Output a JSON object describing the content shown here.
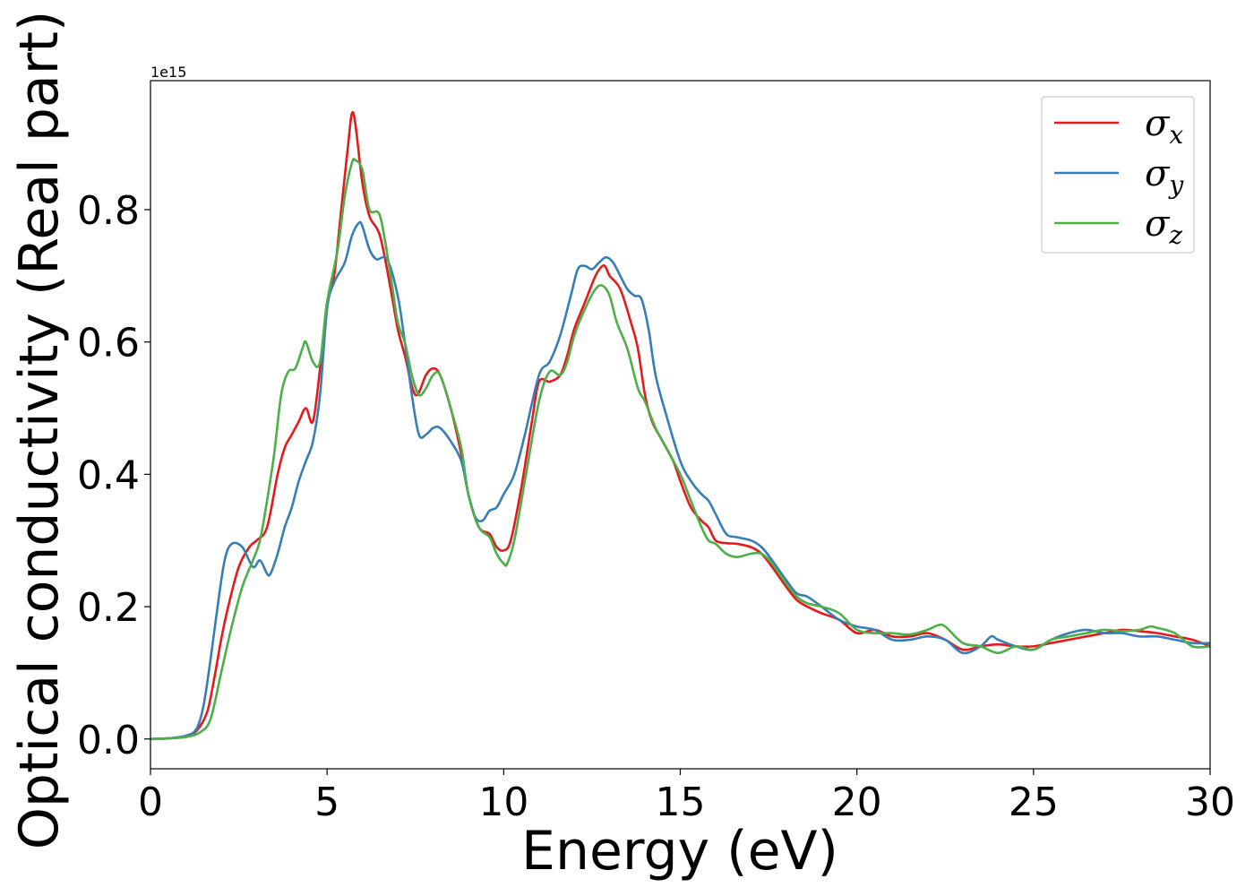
{
  "chart_data": {
    "type": "line",
    "title": "",
    "xlabel": "Energy (eV)",
    "ylabel": "Optical conductivity (Real part)",
    "y_offset_label": "1e15",
    "xlim": [
      0,
      30
    ],
    "ylim": [
      -0.045,
      0.995
    ],
    "xticks": [
      0,
      5,
      10,
      15,
      20,
      25,
      30
    ],
    "xtick_labels": [
      "0",
      "5",
      "10",
      "15",
      "20",
      "25",
      "30"
    ],
    "yticks": [
      0.0,
      0.2,
      0.4,
      0.6,
      0.8
    ],
    "ytick_labels": [
      "0.0",
      "0.2",
      "0.4",
      "0.6",
      "0.8"
    ],
    "grid": false,
    "legend_position": "top-right",
    "series": [
      {
        "name": "σx",
        "symbol": "σ",
        "subscript": "x",
        "color": "#e41a1c",
        "x": [
          0,
          0.5,
          1,
          1.3,
          1.6,
          1.8,
          2,
          2.2,
          2.5,
          2.8,
          3,
          3.3,
          3.6,
          3.8,
          4,
          4.2,
          4.4,
          4.6,
          4.8,
          5,
          5.2,
          5.4,
          5.6,
          5.7,
          5.8,
          6,
          6.2,
          6.5,
          6.8,
          7,
          7.2,
          7.5,
          7.8,
          8,
          8.2,
          8.5,
          8.8,
          9,
          9.3,
          9.6,
          9.8,
          10,
          10.2,
          10.5,
          10.8,
          11,
          11.3,
          11.6,
          11.8,
          12,
          12.3,
          12.6,
          12.8,
          12.9,
          13,
          13.3,
          13.6,
          13.8,
          14,
          14.2,
          14.5,
          14.8,
          15,
          15.3,
          15.6,
          15.8,
          16,
          16.3,
          16.6,
          17,
          17.3,
          17.6,
          18,
          18.3,
          18.6,
          19,
          19.5,
          20,
          20.5,
          21,
          21.5,
          22,
          22.5,
          23,
          23.5,
          24,
          24.5,
          25,
          25.5,
          26,
          26.5,
          27,
          27.5,
          28,
          28.5,
          29,
          29.5,
          30
        ],
        "values": [
          0.0,
          0.001,
          0.004,
          0.012,
          0.04,
          0.09,
          0.15,
          0.2,
          0.26,
          0.29,
          0.3,
          0.32,
          0.4,
          0.44,
          0.46,
          0.48,
          0.5,
          0.48,
          0.56,
          0.66,
          0.7,
          0.8,
          0.9,
          0.945,
          0.93,
          0.84,
          0.79,
          0.76,
          0.68,
          0.62,
          0.58,
          0.52,
          0.55,
          0.56,
          0.55,
          0.5,
          0.43,
          0.37,
          0.32,
          0.31,
          0.29,
          0.285,
          0.3,
          0.38,
          0.48,
          0.54,
          0.54,
          0.55,
          0.58,
          0.62,
          0.66,
          0.7,
          0.715,
          0.712,
          0.7,
          0.68,
          0.63,
          0.59,
          0.52,
          0.48,
          0.45,
          0.42,
          0.39,
          0.35,
          0.33,
          0.32,
          0.3,
          0.296,
          0.295,
          0.29,
          0.28,
          0.26,
          0.23,
          0.21,
          0.2,
          0.19,
          0.18,
          0.16,
          0.165,
          0.155,
          0.155,
          0.16,
          0.15,
          0.135,
          0.14,
          0.143,
          0.14,
          0.14,
          0.145,
          0.15,
          0.155,
          0.16,
          0.165,
          0.163,
          0.16,
          0.155,
          0.15,
          0.14
        ]
      },
      {
        "name": "σy",
        "symbol": "σ",
        "subscript": "y",
        "color": "#377eb8",
        "x": [
          0,
          0.5,
          1,
          1.3,
          1.5,
          1.7,
          1.9,
          2.1,
          2.3,
          2.6,
          2.9,
          3.1,
          3.3,
          3.4,
          3.6,
          3.8,
          4,
          4.2,
          4.4,
          4.6,
          4.8,
          5,
          5.2,
          5.5,
          5.7,
          5.9,
          6,
          6.2,
          6.4,
          6.7,
          7,
          7.2,
          7.4,
          7.6,
          7.8,
          8,
          8.2,
          8.5,
          8.8,
          9,
          9.2,
          9.4,
          9.6,
          9.8,
          10,
          10.3,
          10.6,
          11,
          11.3,
          11.6,
          11.9,
          12.1,
          12.3,
          12.5,
          12.7,
          12.9,
          13.1,
          13.3,
          13.5,
          13.7,
          13.9,
          14.1,
          14.3,
          14.6,
          15,
          15.3,
          15.6,
          15.8,
          16,
          16.3,
          16.6,
          17,
          17.3,
          17.6,
          18,
          18.3,
          18.6,
          19,
          19.5,
          20,
          20.5,
          21,
          21.5,
          22,
          22.5,
          23,
          23.5,
          23.8,
          24,
          24.5,
          25,
          25.5,
          26,
          26.5,
          27,
          27.5,
          28,
          28.5,
          29,
          29.5,
          30
        ],
        "values": [
          0.0,
          0.001,
          0.005,
          0.015,
          0.05,
          0.12,
          0.2,
          0.27,
          0.295,
          0.29,
          0.26,
          0.27,
          0.25,
          0.25,
          0.28,
          0.32,
          0.35,
          0.39,
          0.42,
          0.45,
          0.52,
          0.65,
          0.69,
          0.72,
          0.76,
          0.78,
          0.775,
          0.74,
          0.725,
          0.725,
          0.67,
          0.6,
          0.52,
          0.46,
          0.46,
          0.47,
          0.47,
          0.45,
          0.42,
          0.37,
          0.335,
          0.33,
          0.345,
          0.35,
          0.37,
          0.4,
          0.46,
          0.55,
          0.57,
          0.61,
          0.67,
          0.71,
          0.715,
          0.71,
          0.72,
          0.728,
          0.72,
          0.7,
          0.68,
          0.67,
          0.665,
          0.62,
          0.55,
          0.49,
          0.42,
          0.39,
          0.37,
          0.36,
          0.34,
          0.31,
          0.305,
          0.3,
          0.29,
          0.27,
          0.24,
          0.22,
          0.215,
          0.2,
          0.18,
          0.17,
          0.165,
          0.15,
          0.15,
          0.155,
          0.15,
          0.13,
          0.14,
          0.155,
          0.15,
          0.14,
          0.135,
          0.15,
          0.16,
          0.165,
          0.16,
          0.16,
          0.155,
          0.155,
          0.15,
          0.145,
          0.145
        ]
      },
      {
        "name": "σz",
        "symbol": "σ",
        "subscript": "z",
        "color": "#4daf4a",
        "x": [
          0,
          0.5,
          1,
          1.4,
          1.7,
          2,
          2.3,
          2.6,
          2.9,
          3.1,
          3.3,
          3.5,
          3.7,
          3.9,
          4.1,
          4.3,
          4.4,
          4.6,
          4.8,
          5,
          5.3,
          5.5,
          5.7,
          5.8,
          6,
          6.2,
          6.5,
          6.8,
          7,
          7.2,
          7.4,
          7.6,
          7.8,
          8,
          8.2,
          8.5,
          8.8,
          9,
          9.3,
          9.6,
          9.8,
          10,
          10.1,
          10.3,
          10.6,
          11,
          11.3,
          11.6,
          11.8,
          12,
          12.3,
          12.6,
          12.8,
          13,
          13.2,
          13.5,
          13.8,
          14,
          14.3,
          14.6,
          15,
          15.3,
          15.6,
          15.8,
          16,
          16.3,
          16.6,
          17,
          17.3,
          17.6,
          18,
          18.3,
          18.6,
          19,
          19.5,
          20,
          20.5,
          21,
          21.5,
          22,
          22.3,
          22.5,
          23,
          23.5,
          24,
          24.5,
          25,
          25.5,
          26,
          26.5,
          27,
          27.5,
          28,
          28.3,
          28.5,
          29,
          29.5,
          30
        ],
        "values": [
          0.0,
          0.001,
          0.003,
          0.01,
          0.03,
          0.1,
          0.17,
          0.23,
          0.27,
          0.3,
          0.36,
          0.43,
          0.52,
          0.555,
          0.56,
          0.59,
          0.6,
          0.57,
          0.57,
          0.66,
          0.74,
          0.82,
          0.87,
          0.875,
          0.86,
          0.8,
          0.79,
          0.7,
          0.63,
          0.6,
          0.55,
          0.52,
          0.53,
          0.55,
          0.55,
          0.5,
          0.44,
          0.37,
          0.32,
          0.305,
          0.28,
          0.265,
          0.265,
          0.3,
          0.39,
          0.51,
          0.555,
          0.55,
          0.57,
          0.61,
          0.65,
          0.68,
          0.685,
          0.67,
          0.63,
          0.59,
          0.53,
          0.51,
          0.47,
          0.44,
          0.4,
          0.36,
          0.32,
          0.3,
          0.295,
          0.28,
          0.275,
          0.28,
          0.28,
          0.265,
          0.235,
          0.215,
          0.205,
          0.2,
          0.19,
          0.165,
          0.16,
          0.16,
          0.158,
          0.165,
          0.172,
          0.17,
          0.145,
          0.14,
          0.13,
          0.14,
          0.135,
          0.15,
          0.155,
          0.16,
          0.165,
          0.163,
          0.165,
          0.17,
          0.168,
          0.16,
          0.14,
          0.14
        ]
      }
    ]
  }
}
